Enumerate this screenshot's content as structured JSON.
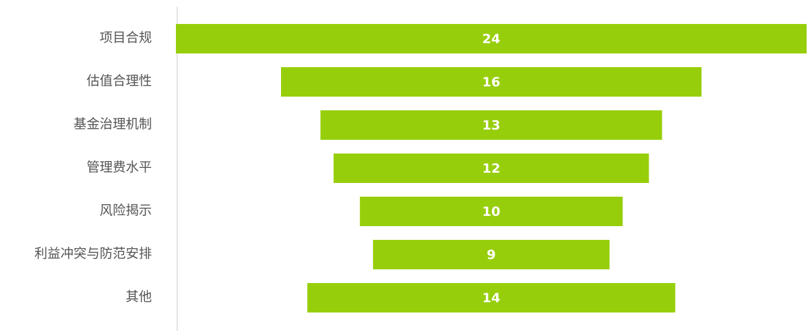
{
  "chart_data": {
    "type": "bar",
    "orientation": "horizontal",
    "style": "funnel-centered",
    "categories": [
      "项目合规",
      "估值合理性",
      "基金治理机制",
      "管理费水平",
      "风险揭示",
      "利益冲突与防范安排",
      "其他"
    ],
    "values": [
      24,
      16,
      13,
      12,
      10,
      9,
      14
    ],
    "data_labels": [
      "24",
      "16",
      "13",
      "12",
      "10",
      "9",
      "14"
    ],
    "bar_color": "#97ce0b",
    "label_color": "#ffffff",
    "category_label_color": "#555555",
    "axis_color": "#c8c8c8",
    "title": "",
    "xlabel": "",
    "ylabel": "",
    "grid": false,
    "legend": "none"
  }
}
